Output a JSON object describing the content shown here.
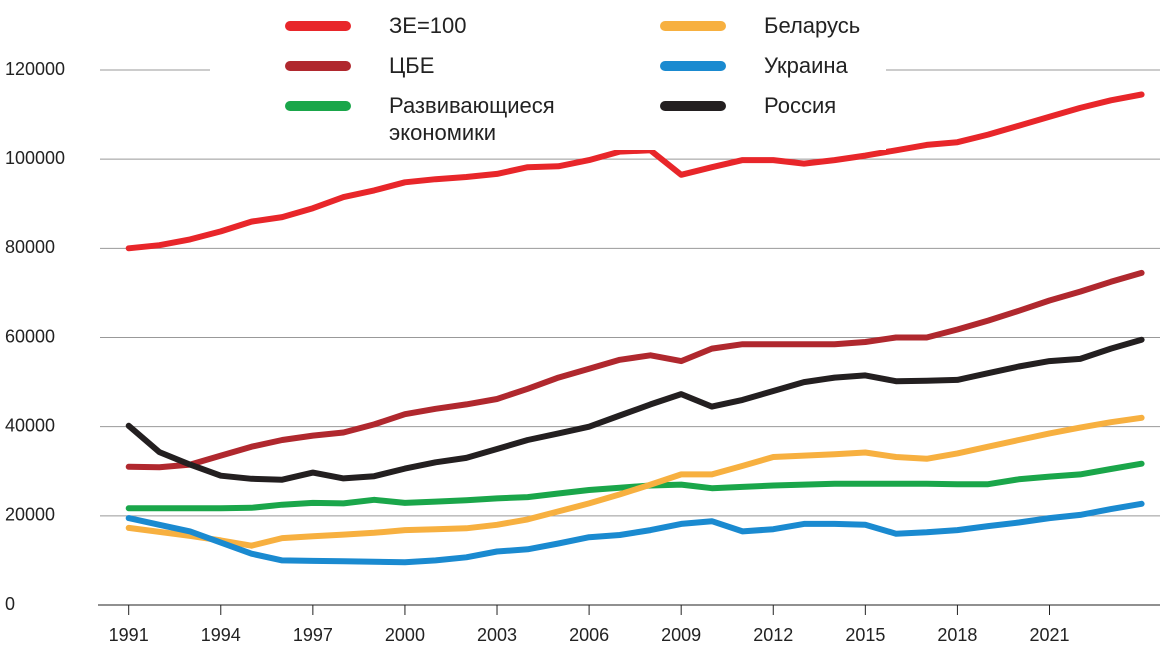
{
  "chart_data": {
    "type": "line",
    "x": [
      1991,
      1992,
      1993,
      1994,
      1995,
      1996,
      1997,
      1998,
      1999,
      2000,
      2001,
      2002,
      2003,
      2004,
      2005,
      2006,
      2007,
      2008,
      2009,
      2010,
      2011,
      2012,
      2013,
      2014,
      2015,
      2016,
      2017,
      2018,
      2019,
      2020,
      2021,
      2022,
      2023,
      2024
    ],
    "series": [
      {
        "name": "ЗЕ=100",
        "color": "#e8262a",
        "values": [
          80000,
          80700,
          82000,
          83800,
          86000,
          87000,
          89000,
          91500,
          93000,
          94800,
          95500,
          96000,
          96700,
          98200,
          98400,
          99800,
          101700,
          102000,
          96500,
          98200,
          99800,
          99800,
          99000,
          99800,
          100800,
          102000,
          103200,
          103800,
          105500,
          107500,
          109500,
          111500,
          113200,
          114500
        ]
      },
      {
        "name": "ЦБЕ",
        "color": "#b0282e",
        "values": [
          31000,
          30900,
          31500,
          33500,
          35500,
          37000,
          38000,
          38700,
          40500,
          42800,
          44000,
          45000,
          46200,
          48500,
          51000,
          53000,
          55000,
          56000,
          54700,
          57500,
          58500,
          58500,
          58500,
          58500,
          59000,
          60000,
          60000,
          61800,
          63800,
          66000,
          68300,
          70300,
          72500,
          74500
        ]
      },
      {
        "name": "Развивающиеся экономики",
        "color": "#1aa64a",
        "values": [
          21700,
          21700,
          21700,
          21700,
          21800,
          22500,
          22900,
          22800,
          23600,
          22900,
          23200,
          23500,
          23900,
          24200,
          25000,
          25800,
          26300,
          26800,
          27000,
          26200,
          26500,
          26800,
          27000,
          27200,
          27200,
          27200,
          27200,
          27100,
          27100,
          28200,
          28800,
          29300,
          30500,
          31700
        ]
      },
      {
        "name": "Беларусь",
        "color": "#f7b040",
        "values": [
          17300,
          16400,
          15500,
          14500,
          13300,
          15000,
          15400,
          15800,
          16200,
          16800,
          17000,
          17200,
          18000,
          19200,
          21000,
          22800,
          24800,
          27000,
          29300,
          29300,
          31200,
          33200,
          33500,
          33800,
          34200,
          33200,
          32800,
          34000,
          35500,
          37000,
          38500,
          39800,
          41000,
          42000
        ]
      },
      {
        "name": "Украина",
        "color": "#1a8ad0",
        "values": [
          19500,
          18000,
          16500,
          14000,
          11500,
          10000,
          9900,
          9800,
          9700,
          9600,
          10000,
          10700,
          12000,
          12500,
          13800,
          15200,
          15700,
          16800,
          18200,
          18800,
          16500,
          17000,
          18200,
          18200,
          18000,
          16000,
          16300,
          16800,
          17700,
          18500,
          19500,
          20200,
          21500,
          22700
        ]
      },
      {
        "name": "Россия",
        "color": "#231f20",
        "values": [
          40200,
          34300,
          31500,
          29000,
          28300,
          28100,
          29700,
          28400,
          28900,
          30600,
          32000,
          33000,
          35000,
          37000,
          38500,
          40000,
          42500,
          45000,
          47300,
          44500,
          46000,
          48000,
          50000,
          51000,
          51500,
          50200,
          50300,
          50500,
          52000,
          53500,
          54700,
          55200,
          57500,
          59500
        ]
      }
    ],
    "xlim": [
      1990,
      2024.6
    ],
    "xticks": [
      1991,
      1994,
      1997,
      2000,
      2003,
      2006,
      2009,
      2012,
      2015,
      2018,
      2021
    ],
    "ylim": [
      0,
      120000
    ],
    "yticks": [
      0,
      20000,
      40000,
      60000,
      80000,
      100000,
      120000
    ],
    "grid": true
  }
}
